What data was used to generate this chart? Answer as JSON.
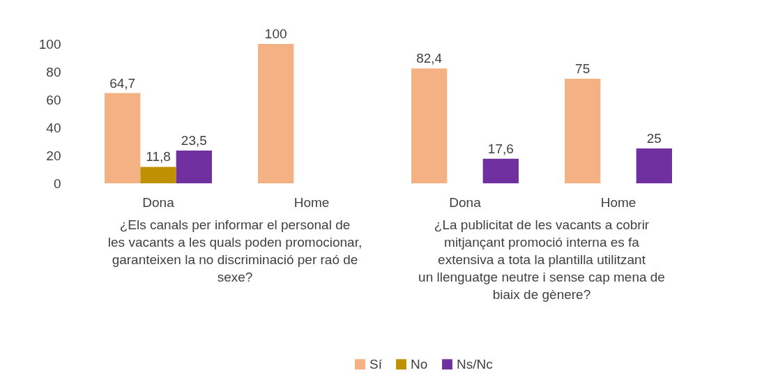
{
  "chart_data": {
    "type": "bar",
    "categories": [
      "Dona",
      "Home",
      "Dona",
      "Home"
    ],
    "series": [
      {
        "name": "Sí",
        "color": "#f4b183",
        "values": [
          64.7,
          100,
          82.4,
          75
        ],
        "value_labels": [
          "64,7",
          "100",
          "82,4",
          "75"
        ]
      },
      {
        "name": "No",
        "color": "#bf9000",
        "values": [
          11.8,
          null,
          null,
          null
        ],
        "value_labels": [
          "11,8",
          null,
          null,
          null
        ]
      },
      {
        "name": "Ns/Nc",
        "color": "#7030a0",
        "values": [
          23.5,
          null,
          17.6,
          25
        ],
        "value_labels": [
          "23,5",
          null,
          "17,6",
          "25"
        ]
      }
    ],
    "ylim": [
      0,
      100
    ],
    "yticks": [
      0,
      20,
      40,
      60,
      80,
      100
    ],
    "annotations": [
      "¿Els canals per informar el personal de les vacants a les quals poden promocionar, garanteixen la no discriminació per raó de sexe?",
      "¿La publicitat de les vacants a cobrir mitjançant promoció interna es fa extensiva a tota la plantilla utilitzant un llenguatge neutre i sense cap mena de biaix de gènere?"
    ],
    "legend": "bottom"
  }
}
